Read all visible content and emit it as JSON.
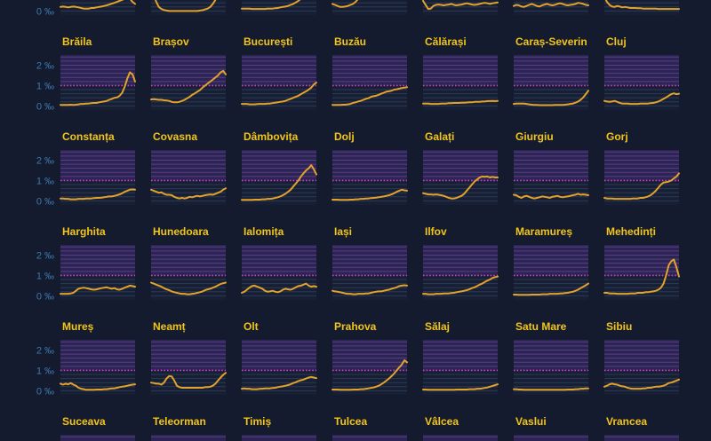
{
  "colors": {
    "background": "#141b2e",
    "line": "#e3a22a",
    "title": "#f2c518",
    "tick": "#3c79ad",
    "reference": "#d63fc6",
    "upper_band": "#2a2552",
    "upper_grid": "#5e3c86",
    "lower_band": "#171f35",
    "lower_grid": "#2d3a54"
  },
  "chart_data": {
    "type": "line",
    "ylim": [
      -0.2,
      2.5
    ],
    "y_ticks": [
      {
        "value": 2,
        "label": "2 ‰"
      },
      {
        "value": 1,
        "label": "1 ‰"
      },
      {
        "value": 0,
        "label": "0 ‰"
      }
    ],
    "reference_line": 1,
    "grid": true,
    "series": [
      {
        "values": [
          0.2,
          0.22,
          0.2,
          0.18,
          0.2,
          0.22,
          0.2,
          0.18,
          0.15,
          0.12,
          0.12,
          0.12,
          0.15,
          0.15,
          0.18,
          0.2,
          0.22,
          0.25,
          0.28,
          0.32,
          0.36,
          0.4,
          0.45,
          0.5,
          0.55,
          0.6,
          0.75,
          0.6,
          0.45,
          0.35
        ]
      },
      {
        "values": [
          1.2,
          0.8,
          0.45,
          0.2,
          0.1,
          0.05,
          0.02,
          0,
          0,
          0,
          0,
          0,
          0,
          0,
          0,
          0,
          0,
          0,
          0,
          0.02,
          0.04,
          0.08,
          0.12,
          0.2,
          0.35,
          0.55,
          0.8,
          1.0,
          1.2,
          1.3
        ]
      },
      {
        "values": [
          0.12,
          0.12,
          0.12,
          0.12,
          0.1,
          0.1,
          0.1,
          0.1,
          0.1,
          0.1,
          0.12,
          0.12,
          0.12,
          0.14,
          0.15,
          0.18,
          0.2,
          0.22,
          0.25,
          0.3,
          0.35,
          0.42,
          0.5,
          0.6,
          0.7,
          0.85,
          1.0,
          1.15,
          1.3,
          1.4
        ]
      },
      {
        "values": [
          0.35,
          0.3,
          0.25,
          0.2,
          0.2,
          0.22,
          0.25,
          0.3,
          0.35,
          0.45,
          0.6,
          0.8,
          1.0,
          1.2,
          1.3,
          1.3,
          1.2,
          1.1,
          1.0,
          1.0,
          1.0,
          1.0,
          1.0,
          1.0,
          1.0,
          1.0,
          1.0,
          1.0,
          1.0,
          1.0
        ]
      },
      {
        "values": [
          0.5,
          0.3,
          0.1,
          0.12,
          0.25,
          0.3,
          0.32,
          0.3,
          0.28,
          0.3,
          0.32,
          0.35,
          0.3,
          0.28,
          0.3,
          0.32,
          0.35,
          0.38,
          0.35,
          0.32,
          0.3,
          0.32,
          0.35,
          0.38,
          0.4,
          0.38,
          0.35,
          0.38,
          0.4,
          0.42
        ]
      },
      {
        "values": [
          0.25,
          0.3,
          0.28,
          0.22,
          0.2,
          0.25,
          0.3,
          0.35,
          0.3,
          0.25,
          0.22,
          0.28,
          0.32,
          0.35,
          0.3,
          0.28,
          0.3,
          0.35,
          0.38,
          0.35,
          0.3,
          0.28,
          0.3,
          0.32,
          0.35,
          0.4,
          0.38,
          0.35,
          0.3,
          0.28
        ]
      },
      {
        "values": [
          0.7,
          0.45,
          0.3,
          0.22,
          0.2,
          0.25,
          0.22,
          0.18,
          0.2,
          0.18,
          0.15,
          0.15,
          0.15,
          0.14,
          0.14,
          0.12,
          0.12,
          0.12,
          0.12,
          0.12,
          0.12,
          0.1,
          0.1,
          0.1,
          0.1,
          0.1,
          0.1,
          0.1,
          0.1,
          0.1
        ]
      },
      {
        "name": "Brăila",
        "values": [
          0.05,
          0.05,
          0.05,
          0.05,
          0.06,
          0.05,
          0.06,
          0.08,
          0.1,
          0.1,
          0.12,
          0.12,
          0.14,
          0.15,
          0.15,
          0.18,
          0.2,
          0.22,
          0.25,
          0.3,
          0.35,
          0.4,
          0.42,
          0.5,
          0.65,
          0.95,
          1.35,
          1.65,
          1.55,
          1.2
        ]
      },
      {
        "name": "Brașov",
        "values": [
          0.32,
          0.33,
          0.32,
          0.3,
          0.3,
          0.28,
          0.27,
          0.25,
          0.2,
          0.18,
          0.18,
          0.2,
          0.25,
          0.3,
          0.38,
          0.45,
          0.55,
          0.62,
          0.7,
          0.78,
          0.9,
          1.0,
          1.1,
          1.2,
          1.3,
          1.4,
          1.5,
          1.65,
          1.72,
          1.55
        ]
      },
      {
        "name": "București",
        "values": [
          0.1,
          0.1,
          0.1,
          0.08,
          0.08,
          0.08,
          0.09,
          0.1,
          0.1,
          0.1,
          0.12,
          0.12,
          0.14,
          0.16,
          0.18,
          0.2,
          0.22,
          0.25,
          0.3,
          0.35,
          0.4,
          0.45,
          0.5,
          0.58,
          0.65,
          0.72,
          0.8,
          0.9,
          1.05,
          1.15
        ]
      },
      {
        "name": "Buzău",
        "values": [
          0.05,
          0.05,
          0.05,
          0.05,
          0.06,
          0.06,
          0.08,
          0.1,
          0.15,
          0.18,
          0.22,
          0.25,
          0.3,
          0.35,
          0.38,
          0.45,
          0.48,
          0.5,
          0.55,
          0.6,
          0.65,
          0.7,
          0.72,
          0.75,
          0.8,
          0.82,
          0.85,
          0.88,
          0.9,
          0.92
        ]
      },
      {
        "name": "Călărași",
        "values": [
          0.12,
          0.12,
          0.12,
          0.1,
          0.1,
          0.1,
          0.1,
          0.12,
          0.12,
          0.12,
          0.14,
          0.14,
          0.15,
          0.15,
          0.15,
          0.16,
          0.16,
          0.17,
          0.18,
          0.18,
          0.2,
          0.2,
          0.2,
          0.22,
          0.22,
          0.24,
          0.24,
          0.25,
          0.24,
          0.25
        ]
      },
      {
        "name": "Caraș-Severin",
        "values": [
          0.1,
          0.12,
          0.12,
          0.12,
          0.12,
          0.1,
          0.08,
          0.06,
          0.05,
          0.05,
          0.04,
          0.04,
          0.04,
          0.04,
          0.04,
          0.04,
          0.05,
          0.05,
          0.05,
          0.05,
          0.06,
          0.08,
          0.1,
          0.12,
          0.16,
          0.22,
          0.3,
          0.42,
          0.58,
          0.75
        ]
      },
      {
        "name": "Cluj",
        "values": [
          0.25,
          0.22,
          0.2,
          0.22,
          0.25,
          0.2,
          0.15,
          0.12,
          0.12,
          0.12,
          0.1,
          0.1,
          0.1,
          0.1,
          0.12,
          0.12,
          0.12,
          0.12,
          0.14,
          0.15,
          0.18,
          0.22,
          0.28,
          0.35,
          0.42,
          0.5,
          0.58,
          0.62,
          0.58,
          0.6
        ]
      },
      {
        "name": "Constanța",
        "values": [
          0.12,
          0.12,
          0.1,
          0.1,
          0.08,
          0.08,
          0.08,
          0.1,
          0.1,
          0.1,
          0.12,
          0.12,
          0.12,
          0.14,
          0.15,
          0.15,
          0.16,
          0.18,
          0.2,
          0.22,
          0.22,
          0.25,
          0.28,
          0.32,
          0.38,
          0.45,
          0.5,
          0.55,
          0.56,
          0.55
        ]
      },
      {
        "name": "Covasna",
        "values": [
          0.55,
          0.5,
          0.45,
          0.4,
          0.42,
          0.35,
          0.3,
          0.3,
          0.28,
          0.2,
          0.15,
          0.12,
          0.15,
          0.12,
          0.15,
          0.2,
          0.18,
          0.22,
          0.25,
          0.22,
          0.25,
          0.28,
          0.3,
          0.32,
          0.3,
          0.35,
          0.4,
          0.45,
          0.55,
          0.62
        ]
      },
      {
        "name": "Dâmbovița",
        "values": [
          0.05,
          0.05,
          0.05,
          0.05,
          0.05,
          0.06,
          0.06,
          0.06,
          0.08,
          0.08,
          0.1,
          0.1,
          0.12,
          0.15,
          0.18,
          0.22,
          0.28,
          0.35,
          0.45,
          0.55,
          0.7,
          0.85,
          1.0,
          1.2,
          1.35,
          1.5,
          1.6,
          1.75,
          1.55,
          1.3
        ]
      },
      {
        "name": "Dolj",
        "values": [
          0.06,
          0.06,
          0.06,
          0.05,
          0.05,
          0.05,
          0.05,
          0.06,
          0.06,
          0.08,
          0.08,
          0.1,
          0.1,
          0.12,
          0.12,
          0.14,
          0.15,
          0.16,
          0.18,
          0.2,
          0.22,
          0.25,
          0.28,
          0.32,
          0.38,
          0.45,
          0.5,
          0.55,
          0.52,
          0.5
        ]
      },
      {
        "name": "Galați",
        "values": [
          0.38,
          0.35,
          0.32,
          0.32,
          0.3,
          0.32,
          0.3,
          0.28,
          0.25,
          0.2,
          0.15,
          0.12,
          0.12,
          0.15,
          0.2,
          0.25,
          0.35,
          0.5,
          0.65,
          0.8,
          0.95,
          1.05,
          1.15,
          1.2,
          1.18,
          1.2,
          1.15,
          1.18,
          1.15,
          1.15
        ]
      },
      {
        "name": "Giurgiu",
        "values": [
          0.3,
          0.28,
          0.2,
          0.15,
          0.22,
          0.25,
          0.2,
          0.15,
          0.12,
          0.15,
          0.18,
          0.22,
          0.2,
          0.18,
          0.15,
          0.2,
          0.22,
          0.25,
          0.2,
          0.18,
          0.2,
          0.22,
          0.25,
          0.28,
          0.3,
          0.35,
          0.3,
          0.32,
          0.3,
          0.28
        ]
      },
      {
        "name": "Gorj",
        "values": [
          0.15,
          0.12,
          0.12,
          0.12,
          0.1,
          0.1,
          0.1,
          0.1,
          0.1,
          0.1,
          0.1,
          0.12,
          0.12,
          0.12,
          0.15,
          0.15,
          0.18,
          0.22,
          0.28,
          0.38,
          0.5,
          0.65,
          0.8,
          0.9,
          0.92,
          0.95,
          1.0,
          1.1,
          1.2,
          1.35
        ]
      },
      {
        "name": "Harghita",
        "values": [
          0.1,
          0.1,
          0.1,
          0.1,
          0.12,
          0.15,
          0.25,
          0.35,
          0.38,
          0.4,
          0.38,
          0.35,
          0.32,
          0.3,
          0.32,
          0.35,
          0.38,
          0.4,
          0.42,
          0.38,
          0.35,
          0.38,
          0.32,
          0.3,
          0.35,
          0.4,
          0.45,
          0.5,
          0.48,
          0.45
        ]
      },
      {
        "name": "Hunedoara",
        "values": [
          0.65,
          0.6,
          0.55,
          0.5,
          0.45,
          0.38,
          0.32,
          0.28,
          0.22,
          0.18,
          0.15,
          0.12,
          0.1,
          0.1,
          0.08,
          0.08,
          0.1,
          0.12,
          0.15,
          0.18,
          0.22,
          0.28,
          0.32,
          0.35,
          0.4,
          0.45,
          0.52,
          0.58,
          0.62,
          0.65
        ]
      },
      {
        "name": "Ialomița",
        "values": [
          0.15,
          0.2,
          0.3,
          0.4,
          0.48,
          0.5,
          0.45,
          0.4,
          0.35,
          0.25,
          0.2,
          0.22,
          0.25,
          0.2,
          0.18,
          0.22,
          0.3,
          0.35,
          0.32,
          0.3,
          0.35,
          0.42,
          0.48,
          0.5,
          0.55,
          0.6,
          0.5,
          0.45,
          0.48,
          0.45
        ]
      },
      {
        "name": "Iași",
        "values": [
          0.25,
          0.22,
          0.2,
          0.18,
          0.15,
          0.12,
          0.1,
          0.1,
          0.08,
          0.08,
          0.1,
          0.1,
          0.1,
          0.12,
          0.12,
          0.15,
          0.18,
          0.2,
          0.22,
          0.22,
          0.25,
          0.28,
          0.3,
          0.35,
          0.38,
          0.42,
          0.48,
          0.5,
          0.52,
          0.5
        ]
      },
      {
        "name": "Ilfov",
        "values": [
          0.1,
          0.1,
          0.08,
          0.08,
          0.08,
          0.1,
          0.1,
          0.1,
          0.12,
          0.12,
          0.12,
          0.14,
          0.15,
          0.18,
          0.2,
          0.22,
          0.25,
          0.28,
          0.32,
          0.38,
          0.42,
          0.48,
          0.55,
          0.6,
          0.68,
          0.75,
          0.8,
          0.88,
          0.92,
          0.95
        ]
      },
      {
        "name": "Maramureș",
        "values": [
          0.06,
          0.06,
          0.05,
          0.05,
          0.05,
          0.05,
          0.05,
          0.06,
          0.06,
          0.06,
          0.06,
          0.08,
          0.08,
          0.08,
          0.1,
          0.1,
          0.1,
          0.1,
          0.12,
          0.12,
          0.14,
          0.15,
          0.18,
          0.2,
          0.25,
          0.3,
          0.38,
          0.45,
          0.52,
          0.6
        ]
      },
      {
        "name": "Mehedinți",
        "values": [
          0.15,
          0.15,
          0.12,
          0.12,
          0.12,
          0.1,
          0.1,
          0.1,
          0.1,
          0.1,
          0.12,
          0.12,
          0.12,
          0.15,
          0.15,
          0.15,
          0.18,
          0.18,
          0.2,
          0.22,
          0.25,
          0.3,
          0.4,
          0.6,
          1.0,
          1.5,
          1.7,
          1.78,
          1.4,
          0.95
        ]
      },
      {
        "name": "Mureș",
        "values": [
          0.35,
          0.3,
          0.35,
          0.32,
          0.38,
          0.3,
          0.25,
          0.15,
          0.1,
          0.08,
          0.05,
          0.05,
          0.05,
          0.05,
          0.06,
          0.06,
          0.06,
          0.08,
          0.08,
          0.1,
          0.12,
          0.12,
          0.15,
          0.18,
          0.2,
          0.22,
          0.25,
          0.28,
          0.3,
          0.32
        ]
      },
      {
        "name": "Neamț",
        "values": [
          0.4,
          0.38,
          0.35,
          0.35,
          0.3,
          0.4,
          0.6,
          0.72,
          0.7,
          0.5,
          0.25,
          0.18,
          0.15,
          0.15,
          0.15,
          0.15,
          0.15,
          0.15,
          0.15,
          0.15,
          0.15,
          0.18,
          0.18,
          0.2,
          0.25,
          0.35,
          0.5,
          0.65,
          0.78,
          0.88
        ]
      },
      {
        "name": "Olt",
        "values": [
          0.1,
          0.12,
          0.1,
          0.1,
          0.08,
          0.08,
          0.08,
          0.1,
          0.1,
          0.12,
          0.12,
          0.12,
          0.14,
          0.15,
          0.18,
          0.2,
          0.22,
          0.25,
          0.28,
          0.32,
          0.38,
          0.42,
          0.48,
          0.52,
          0.55,
          0.6,
          0.65,
          0.68,
          0.65,
          0.62
        ]
      },
      {
        "name": "Prahova",
        "values": [
          0.06,
          0.06,
          0.06,
          0.05,
          0.05,
          0.05,
          0.05,
          0.05,
          0.06,
          0.06,
          0.06,
          0.08,
          0.08,
          0.1,
          0.12,
          0.14,
          0.16,
          0.2,
          0.25,
          0.32,
          0.4,
          0.5,
          0.6,
          0.72,
          0.85,
          1.0,
          1.15,
          1.3,
          1.5,
          1.4
        ]
      },
      {
        "name": "Sălaj",
        "values": [
          0.06,
          0.06,
          0.05,
          0.05,
          0.05,
          0.05,
          0.05,
          0.05,
          0.05,
          0.05,
          0.05,
          0.05,
          0.05,
          0.06,
          0.06,
          0.06,
          0.06,
          0.06,
          0.08,
          0.08,
          0.08,
          0.1,
          0.1,
          0.12,
          0.14,
          0.16,
          0.2,
          0.24,
          0.28,
          0.32
        ]
      },
      {
        "name": "Satu Mare",
        "values": [
          0.08,
          0.08,
          0.06,
          0.06,
          0.05,
          0.05,
          0.05,
          0.05,
          0.05,
          0.05,
          0.05,
          0.05,
          0.05,
          0.05,
          0.05,
          0.05,
          0.05,
          0.05,
          0.05,
          0.05,
          0.05,
          0.06,
          0.06,
          0.06,
          0.08,
          0.08,
          0.1,
          0.1,
          0.12,
          0.12
        ]
      },
      {
        "name": "Sibiu",
        "values": [
          0.2,
          0.25,
          0.32,
          0.35,
          0.32,
          0.3,
          0.25,
          0.22,
          0.2,
          0.15,
          0.12,
          0.1,
          0.1,
          0.1,
          0.1,
          0.12,
          0.12,
          0.15,
          0.15,
          0.18,
          0.2,
          0.2,
          0.22,
          0.25,
          0.3,
          0.38,
          0.4,
          0.45,
          0.5,
          0.55
        ]
      },
      {
        "name": "Suceava",
        "values": []
      },
      {
        "name": "Teleorman",
        "values": []
      },
      {
        "name": "Timiș",
        "values": []
      },
      {
        "name": "Tulcea",
        "values": []
      },
      {
        "name": "Vâlcea",
        "values": []
      },
      {
        "name": "Vaslui",
        "values": []
      },
      {
        "name": "Vrancea",
        "values": []
      }
    ]
  }
}
